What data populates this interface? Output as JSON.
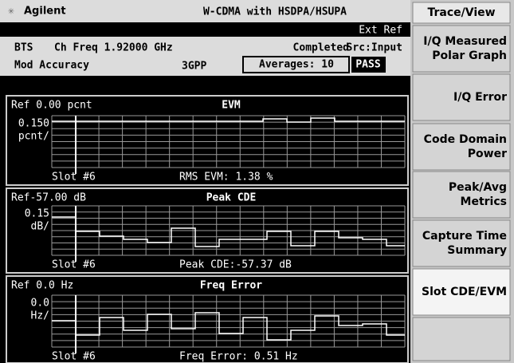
{
  "header": {
    "brand": "Agilent",
    "title": "W-CDMA with HSDPA/HSUPA",
    "ext_ref": "Ext Ref",
    "bts": "BTS",
    "ch_freq": "Ch Freq 1.92000 GHz",
    "status": "Completed",
    "source": "Src:Input",
    "mode": "Mod Accuracy",
    "standard": "3GPP",
    "averages": "Averages: 10",
    "result": "PASS"
  },
  "panels": [
    {
      "ref": "Ref 0.00 pcnt",
      "title": "EVM",
      "scale": "0.150",
      "unit": "pcnt/",
      "slot": "Slot #6",
      "readout": "RMS EVM: 1.38 %"
    },
    {
      "ref": "Ref-57.00 dB",
      "title": "Peak CDE",
      "scale": "0.15",
      "unit": "dB/",
      "slot": "Slot #6",
      "readout": "Peak CDE:-57.37 dB"
    },
    {
      "ref": "Ref 0.0  Hz",
      "title": "Freq Error",
      "scale": "0.0",
      "unit": "Hz/",
      "slot": "Slot #6",
      "readout": "Freq Error: 0.51 Hz"
    }
  ],
  "menu": {
    "title": "Trace/View",
    "softkeys": [
      [
        "I/Q Measured",
        "Polar Graph"
      ],
      [
        "I/Q Error"
      ],
      [
        "Code Domain",
        "Power"
      ],
      [
        "Peak/Avg",
        "Metrics"
      ],
      [
        "Capture Time",
        "Summary"
      ],
      [
        "Slot CDE/EVM"
      ]
    ]
  }
}
